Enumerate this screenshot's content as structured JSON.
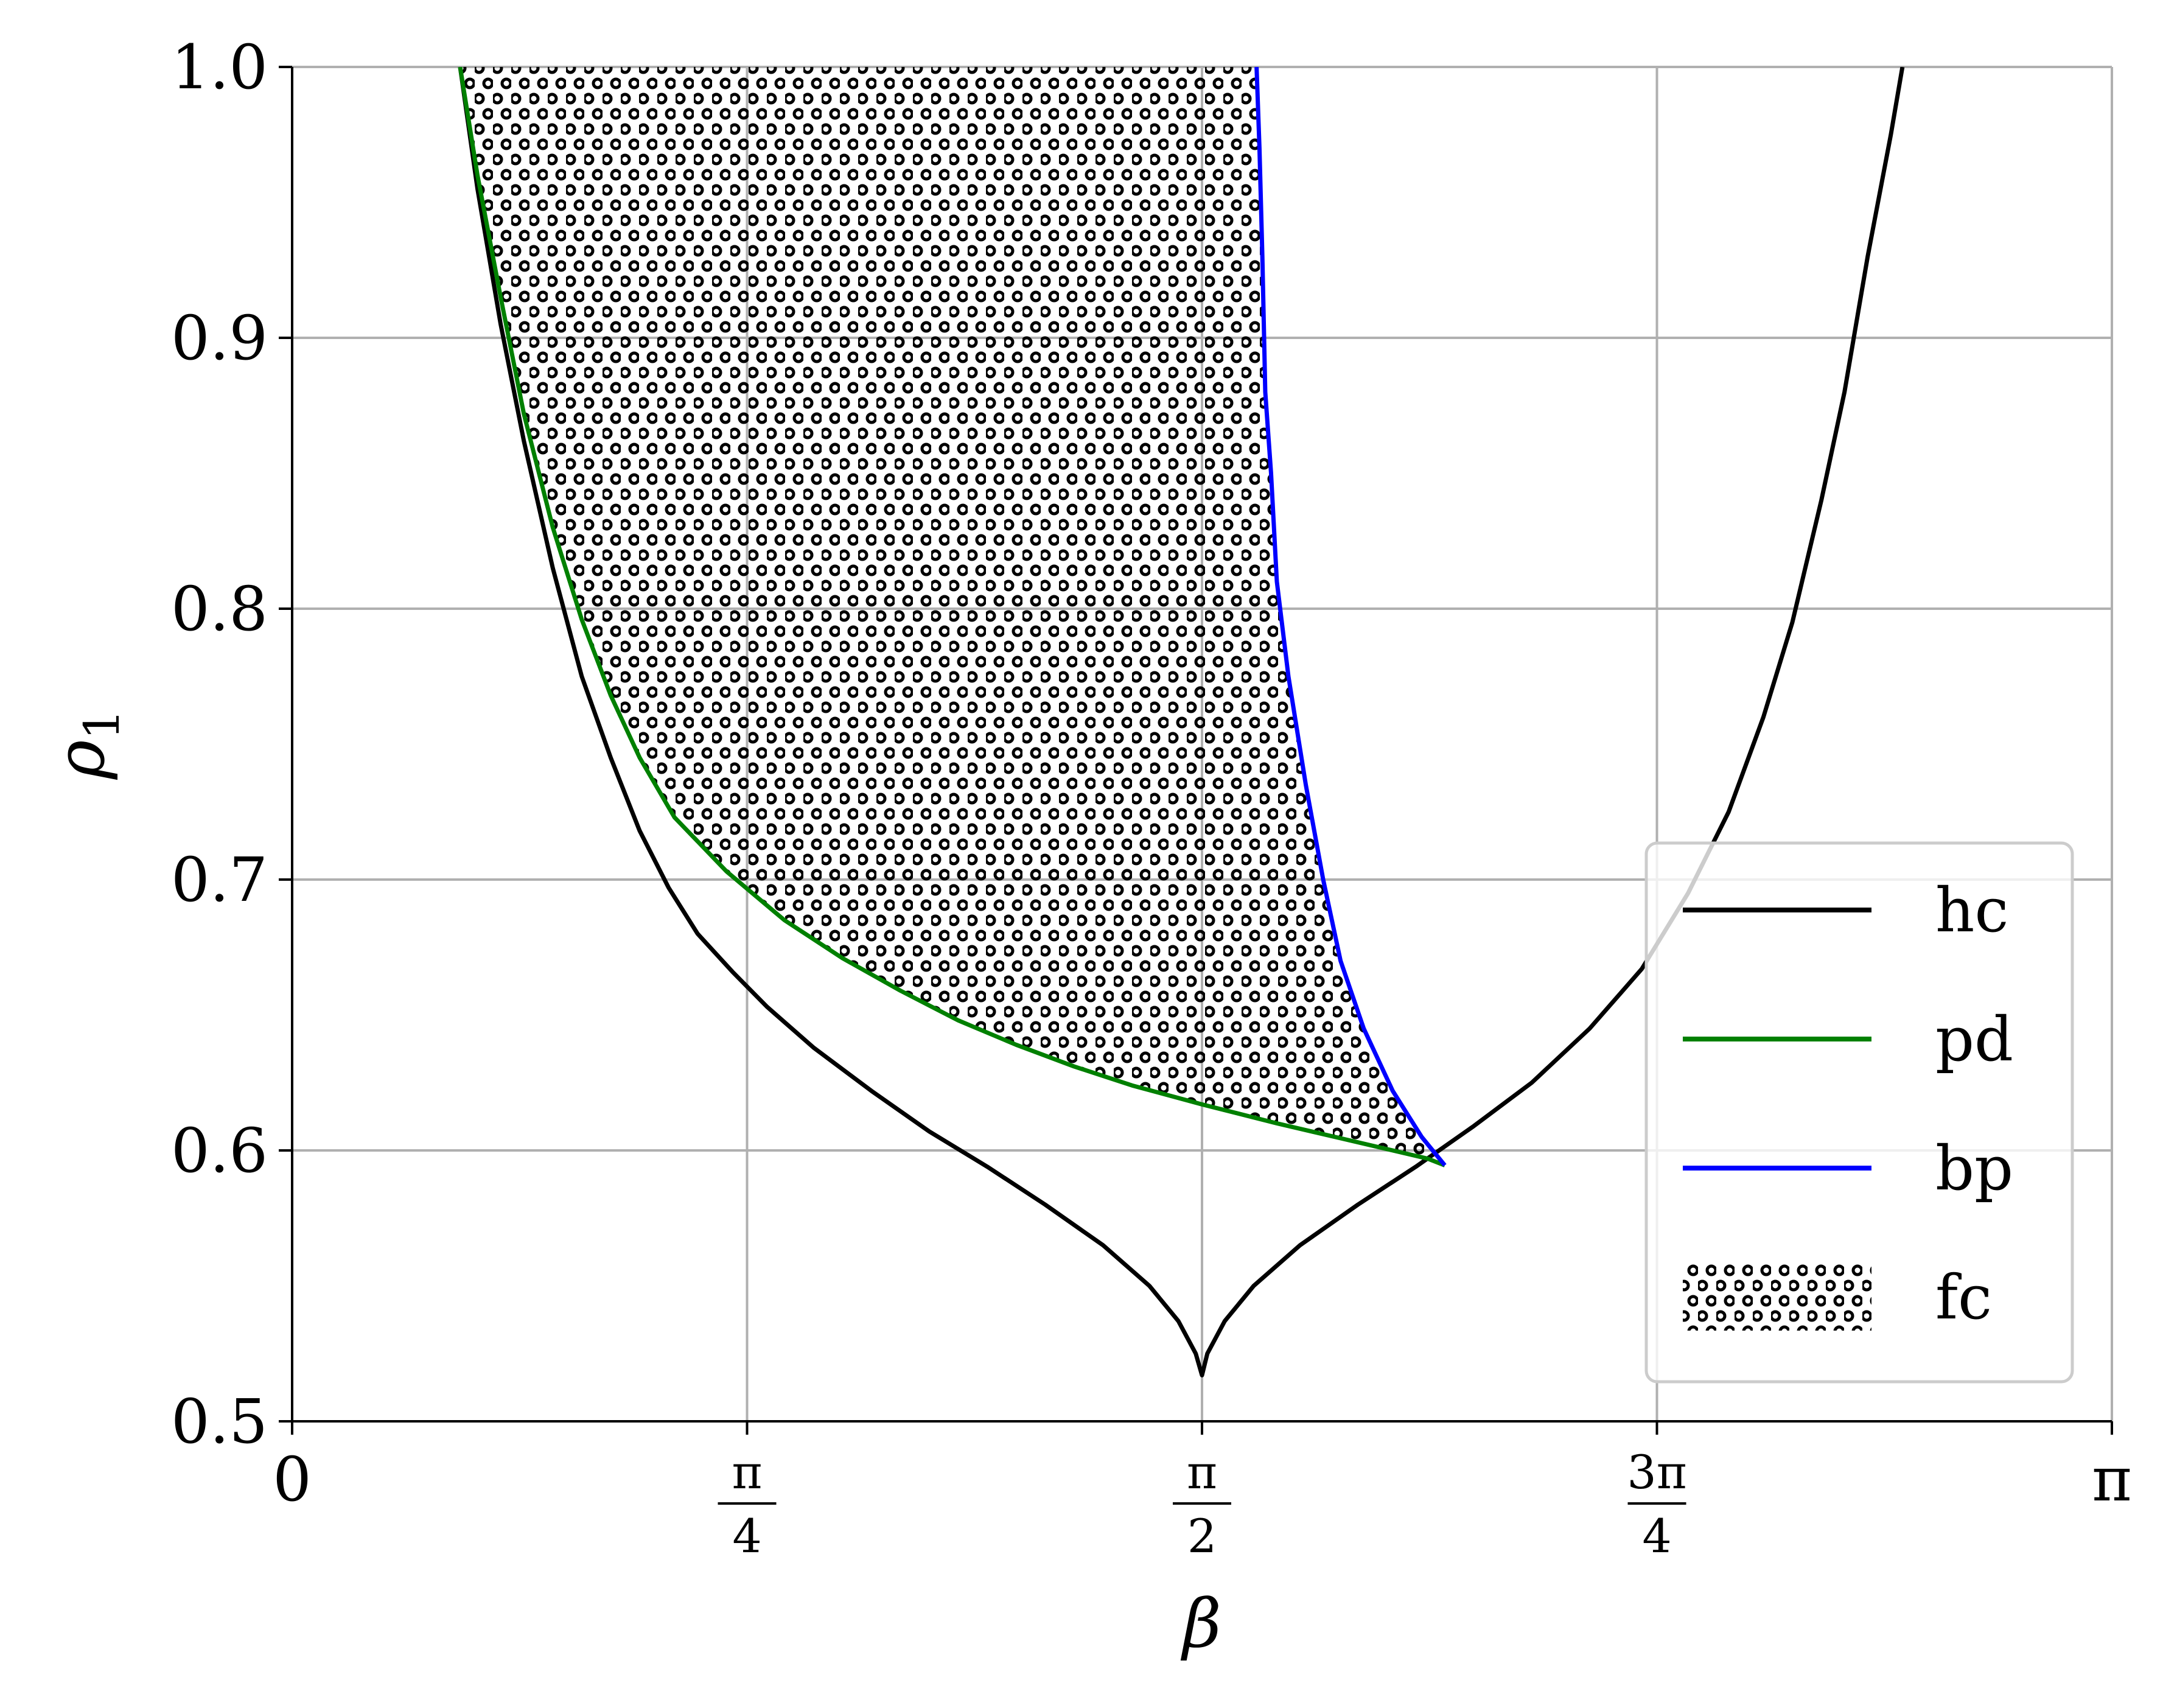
{
  "chart_data": {
    "type": "line",
    "xlabel": "β",
    "ylabel": "ρ",
    "ylabel_sub": "1",
    "xlim": [
      0,
      3.14159
    ],
    "ylim": [
      0.5,
      1.0
    ],
    "grid": true,
    "legend_position": "lower-right",
    "x_ticks": [
      {
        "value": 0,
        "label": "0"
      },
      {
        "value": 0.7854,
        "num": "π",
        "den": "4"
      },
      {
        "value": 1.5708,
        "num": "π",
        "den": "2"
      },
      {
        "value": 2.3562,
        "num": "3π",
        "den": "4"
      },
      {
        "value": 3.14159,
        "label": "π"
      }
    ],
    "y_ticks": [
      {
        "value": 0.5,
        "label": "0.5"
      },
      {
        "value": 0.6,
        "label": "0.6"
      },
      {
        "value": 0.7,
        "label": "0.7"
      },
      {
        "value": 0.8,
        "label": "0.8"
      },
      {
        "value": 0.9,
        "label": "0.9"
      },
      {
        "value": 1.0,
        "label": "1.0"
      }
    ],
    "series": [
      {
        "name": "hc",
        "color": "#000000",
        "points": [
          [
            0.29,
            1.0
          ],
          [
            0.32,
            0.955
          ],
          [
            0.36,
            0.905
          ],
          [
            0.4,
            0.862
          ],
          [
            0.45,
            0.815
          ],
          [
            0.5,
            0.775
          ],
          [
            0.55,
            0.745
          ],
          [
            0.6,
            0.718
          ],
          [
            0.65,
            0.697
          ],
          [
            0.7,
            0.68
          ],
          [
            0.76,
            0.666
          ],
          [
            0.82,
            0.653
          ],
          [
            0.9,
            0.638
          ],
          [
            1.0,
            0.622
          ],
          [
            1.1,
            0.607
          ],
          [
            1.2,
            0.594
          ],
          [
            1.3,
            0.58
          ],
          [
            1.4,
            0.565
          ],
          [
            1.48,
            0.55
          ],
          [
            1.53,
            0.537
          ],
          [
            1.56,
            0.525
          ],
          [
            1.5708,
            0.517
          ],
          [
            1.58,
            0.525
          ],
          [
            1.61,
            0.537
          ],
          [
            1.66,
            0.55
          ],
          [
            1.74,
            0.565
          ],
          [
            1.84,
            0.58
          ],
          [
            1.94,
            0.594
          ],
          [
            2.04,
            0.609
          ],
          [
            2.14,
            0.625
          ],
          [
            2.24,
            0.645
          ],
          [
            2.33,
            0.667
          ],
          [
            2.41,
            0.695
          ],
          [
            2.48,
            0.725
          ],
          [
            2.54,
            0.76
          ],
          [
            2.59,
            0.795
          ],
          [
            2.64,
            0.84
          ],
          [
            2.68,
            0.88
          ],
          [
            2.72,
            0.93
          ],
          [
            2.76,
            0.975
          ],
          [
            2.78,
            1.0
          ]
        ]
      },
      {
        "name": "pd",
        "color": "#008000",
        "points": [
          [
            0.29,
            1.0
          ],
          [
            0.32,
            0.96
          ],
          [
            0.36,
            0.915
          ],
          [
            0.4,
            0.872
          ],
          [
            0.45,
            0.83
          ],
          [
            0.5,
            0.796
          ],
          [
            0.55,
            0.768
          ],
          [
            0.6,
            0.745
          ],
          [
            0.66,
            0.723
          ],
          [
            0.75,
            0.703
          ],
          [
            0.85,
            0.685
          ],
          [
            0.95,
            0.671
          ],
          [
            1.05,
            0.659
          ],
          [
            1.15,
            0.648
          ],
          [
            1.25,
            0.639
          ],
          [
            1.35,
            0.631
          ],
          [
            1.45,
            0.624
          ],
          [
            1.5708,
            0.617
          ],
          [
            1.7,
            0.61
          ],
          [
            1.8,
            0.605
          ],
          [
            1.9,
            0.6
          ],
          [
            1.96,
            0.597
          ],
          [
            1.99,
            0.5945
          ]
        ]
      },
      {
        "name": "bp",
        "color": "#0000ff",
        "points": [
          [
            1.99,
            0.5945
          ],
          [
            1.95,
            0.605
          ],
          [
            1.9,
            0.622
          ],
          [
            1.85,
            0.645
          ],
          [
            1.81,
            0.67
          ],
          [
            1.78,
            0.7
          ],
          [
            1.75,
            0.735
          ],
          [
            1.72,
            0.775
          ],
          [
            1.7,
            0.81
          ],
          [
            1.69,
            0.85
          ],
          [
            1.68,
            0.88
          ],
          [
            1.675,
            0.93
          ],
          [
            1.67,
            0.97
          ],
          [
            1.665,
            1.0
          ]
        ]
      },
      {
        "name": "fc",
        "fill": "dots"
      }
    ]
  }
}
